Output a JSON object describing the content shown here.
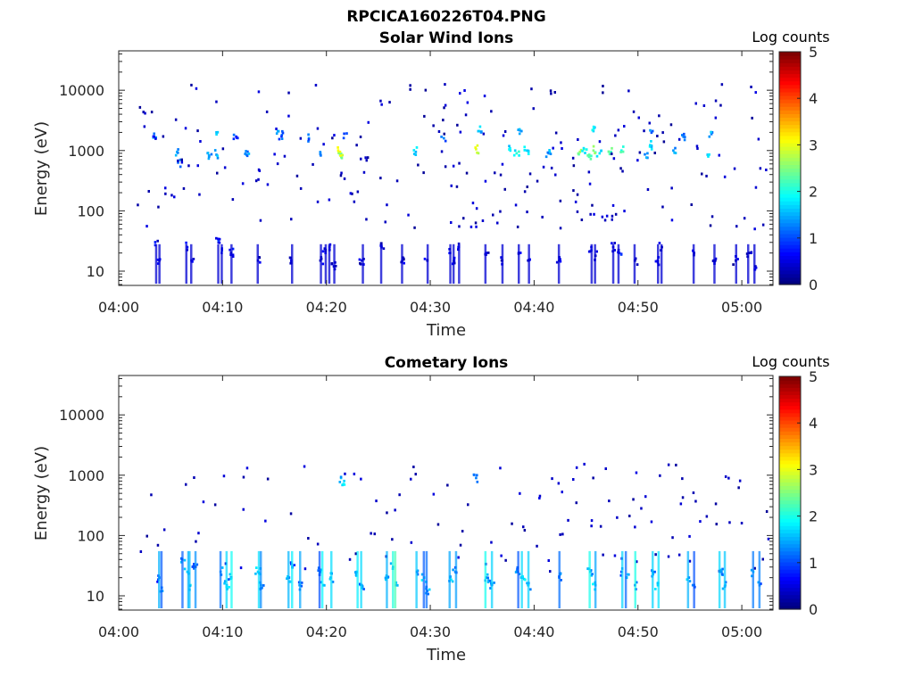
{
  "figure": {
    "title": "RPCICA160226T04.PNG"
  },
  "colors": {
    "axis": "#262626",
    "frame": "#262626"
  },
  "chart_data": [
    {
      "type": "heatmap",
      "title": "Solar Wind Ions",
      "xlabel": "Time",
      "ylabel": "Energy (eV)",
      "x_ticks": [
        "04:00",
        "04:10",
        "04:20",
        "04:30",
        "04:40",
        "04:50",
        "05:00"
      ],
      "y_ticks": [
        "10",
        "100",
        "1000",
        "10000"
      ],
      "y_scale": "log",
      "xlim_minutes": [
        0,
        63
      ],
      "ylim": [
        5.8,
        45000
      ],
      "colorbar": {
        "label": "Log counts",
        "ticks": [
          "0",
          "1",
          "2",
          "3",
          "4",
          "5"
        ],
        "range": [
          0,
          5
        ],
        "colormap": "jet"
      },
      "points": [
        [
          3.3,
          1900,
          1.3
        ],
        [
          3.3,
          1700,
          0.6
        ],
        [
          5.5,
          950,
          1.5
        ],
        [
          5.6,
          630,
          1.2
        ],
        [
          8.6,
          800,
          1.4
        ],
        [
          9.3,
          850,
          1.6
        ],
        [
          9.3,
          2000,
          1.8
        ],
        [
          11.2,
          1700,
          0.9
        ],
        [
          12.2,
          850,
          1.3
        ],
        [
          15.2,
          2100,
          1.4
        ],
        [
          15.6,
          1800,
          1.1
        ],
        [
          18.2,
          1600,
          1.1
        ],
        [
          19.3,
          900,
          1.2
        ],
        [
          21.2,
          850,
          2.3
        ],
        [
          21.2,
          950,
          2.9
        ],
        [
          21.6,
          1900,
          1.2
        ],
        [
          28.5,
          950,
          1.7
        ],
        [
          31.2,
          1600,
          1.2
        ],
        [
          34.3,
          1050,
          2.9
        ],
        [
          34.6,
          2100,
          1.5
        ],
        [
          37.6,
          1000,
          1.8
        ],
        [
          38.2,
          900,
          1.9
        ],
        [
          38.5,
          1900,
          1.4
        ],
        [
          39.2,
          1000,
          1.6
        ],
        [
          41.3,
          900,
          1.4
        ],
        [
          44.3,
          950,
          2.5
        ],
        [
          44.7,
          1050,
          2.0
        ],
        [
          45.2,
          850,
          2.2
        ],
        [
          45.6,
          1000,
          2.4
        ],
        [
          45.6,
          2100,
          1.8
        ],
        [
          46.2,
          900,
          1.7
        ],
        [
          47.3,
          950,
          2.2
        ],
        [
          48.3,
          1000,
          2.0
        ],
        [
          50.8,
          900,
          1.4
        ],
        [
          51.2,
          1200,
          1.8
        ],
        [
          51.3,
          2100,
          1.3
        ],
        [
          53.3,
          1000,
          1.3
        ],
        [
          54.3,
          1700,
          1.1
        ],
        [
          56.6,
          850,
          1.5
        ],
        [
          57.0,
          2000,
          1.4
        ],
        [
          3.4,
          27,
          0.5
        ],
        [
          3.8,
          15,
          0.4
        ],
        [
          6.5,
          25,
          0.5
        ],
        [
          6.9,
          15,
          0.4
        ],
        [
          9.5,
          30,
          0.7
        ],
        [
          9.8,
          20,
          0.6
        ],
        [
          10.7,
          20,
          0.5
        ],
        [
          13.3,
          15,
          0.3
        ],
        [
          16.5,
          15,
          0.3
        ],
        [
          19.3,
          15,
          0.4
        ],
        [
          19.8,
          20,
          0.5
        ],
        [
          20.2,
          25,
          0.4
        ],
        [
          20.6,
          12,
          0.3
        ],
        [
          23.3,
          15,
          0.4
        ],
        [
          25.2,
          25,
          0.4
        ],
        [
          27.2,
          15,
          0.3
        ],
        [
          29.6,
          15,
          0.4
        ],
        [
          31.8,
          20,
          0.5
        ],
        [
          32.2,
          15,
          0.4
        ],
        [
          32.6,
          25,
          0.5
        ],
        [
          35.3,
          20,
          0.4
        ],
        [
          36.8,
          15,
          0.3
        ],
        [
          38.4,
          20,
          0.5
        ],
        [
          39.3,
          15,
          0.4
        ],
        [
          42.3,
          15,
          0.4
        ],
        [
          45.4,
          25,
          0.6
        ],
        [
          45.8,
          18,
          0.4
        ],
        [
          47.5,
          25,
          0.5
        ],
        [
          48.1,
          20,
          0.6
        ],
        [
          49.6,
          15,
          0.4
        ],
        [
          51.8,
          15,
          0.5
        ],
        [
          52.2,
          25,
          0.4
        ],
        [
          55.3,
          20,
          0.4
        ],
        [
          57.2,
          15,
          0.4
        ],
        [
          59.3,
          15,
          0.3
        ],
        [
          60.6,
          20,
          0.4
        ],
        [
          61.2,
          12,
          0.3
        ]
      ]
    },
    {
      "type": "heatmap",
      "title": "Cometary Ions",
      "xlabel": "Time",
      "ylabel": "Energy (eV)",
      "x_ticks": [
        "04:00",
        "04:10",
        "04:20",
        "04:30",
        "04:40",
        "04:50",
        "05:00"
      ],
      "y_ticks": [
        "10",
        "100",
        "1000",
        "10000"
      ],
      "y_scale": "log",
      "xlim_minutes": [
        0,
        63
      ],
      "ylim": [
        5.8,
        45000
      ],
      "colorbar": {
        "label": "Log counts",
        "ticks": [
          "0",
          "1",
          "2",
          "3",
          "4",
          "5"
        ],
        "range": [
          0,
          5
        ],
        "colormap": "jet"
      },
      "points": [
        [
          3.8,
          20,
          0.9
        ],
        [
          4.1,
          12,
          1.3
        ],
        [
          6.0,
          40,
          1.3
        ],
        [
          6.5,
          25,
          1.5
        ],
        [
          6.8,
          15,
          1.7
        ],
        [
          7.2,
          30,
          1.2
        ],
        [
          9.7,
          25,
          1.4
        ],
        [
          10.3,
          15,
          1.6
        ],
        [
          10.7,
          20,
          1.3
        ],
        [
          13.3,
          25,
          1.5
        ],
        [
          13.6,
          15,
          1.2
        ],
        [
          16.3,
          20,
          1.4
        ],
        [
          16.6,
          30,
          1.1
        ],
        [
          17.3,
          15,
          1.2
        ],
        [
          19.3,
          25,
          1.3
        ],
        [
          19.6,
          15,
          1.5
        ],
        [
          20.3,
          20,
          1.4
        ],
        [
          22.8,
          25,
          1.4
        ],
        [
          23.3,
          15,
          1.2
        ],
        [
          25.8,
          20,
          1.5
        ],
        [
          26.3,
          30,
          1.2
        ],
        [
          26.6,
          15,
          1.3
        ],
        [
          28.6,
          25,
          1.1
        ],
        [
          29.3,
          20,
          1.7
        ],
        [
          29.6,
          12,
          1.4
        ],
        [
          31.8,
          20,
          1.5
        ],
        [
          32.3,
          25,
          1.2
        ],
        [
          35.3,
          20,
          1.3
        ],
        [
          35.8,
          15,
          1.1
        ],
        [
          38.3,
          25,
          1.2
        ],
        [
          38.8,
          20,
          1.7
        ],
        [
          39.3,
          15,
          1.4
        ],
        [
          42.3,
          20,
          1.3
        ],
        [
          45.3,
          25,
          1.5
        ],
        [
          45.8,
          15,
          1.6
        ],
        [
          48.3,
          25,
          1.2
        ],
        [
          48.8,
          20,
          1.4
        ],
        [
          49.6,
          15,
          1.2
        ],
        [
          51.3,
          25,
          1.3
        ],
        [
          51.8,
          15,
          1.8
        ],
        [
          54.8,
          20,
          1.5
        ],
        [
          55.3,
          15,
          1.3
        ],
        [
          57.8,
          25,
          1.2
        ],
        [
          58.3,
          15,
          1.4
        ],
        [
          61.0,
          25,
          1.5
        ],
        [
          61.6,
          15,
          1.2
        ],
        [
          21.3,
          900,
          1.4
        ],
        [
          21.6,
          800,
          1.6
        ],
        [
          34.3,
          900,
          1.1
        ]
      ]
    }
  ]
}
